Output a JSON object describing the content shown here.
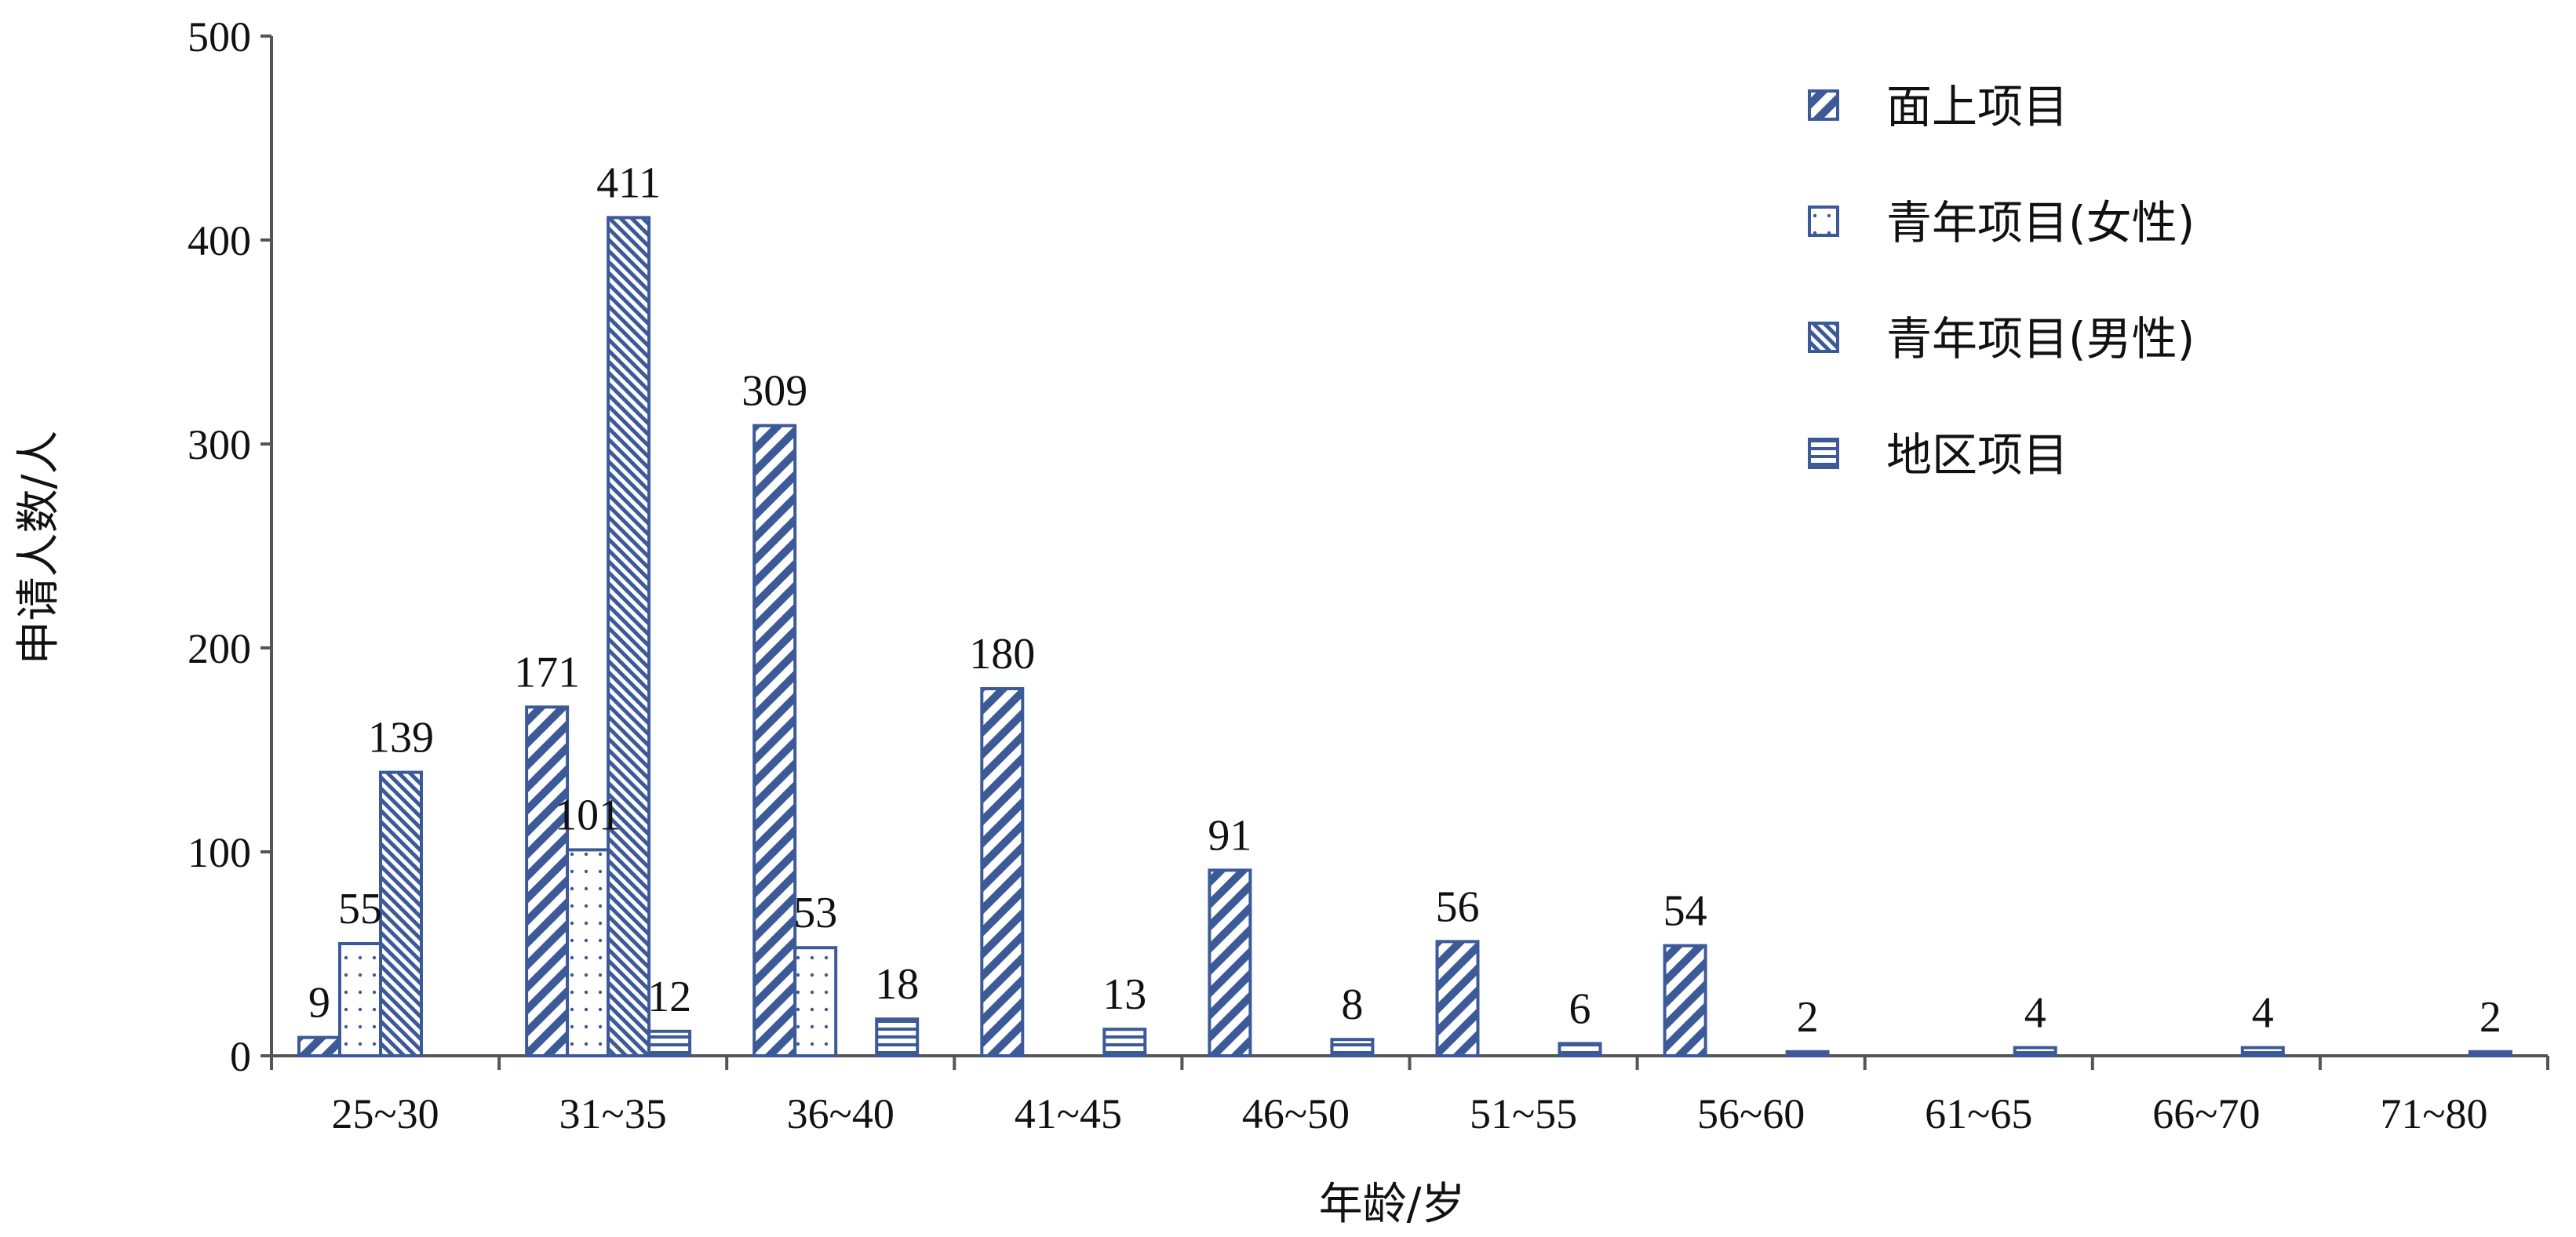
{
  "chart_data": {
    "type": "bar",
    "xlabel": "年龄/岁",
    "ylabel": "申请人数/人",
    "ylim": [
      0,
      500
    ],
    "yticks": [
      0,
      100,
      200,
      300,
      400,
      500
    ],
    "categories": [
      "25~30",
      "31~35",
      "36~40",
      "41~45",
      "46~50",
      "51~55",
      "56~60",
      "61~65",
      "66~70",
      "71~80"
    ],
    "series": [
      {
        "name": "面上项目",
        "pattern": "diag-down",
        "values": [
          9,
          171,
          309,
          180,
          91,
          56,
          54,
          null,
          null,
          null
        ]
      },
      {
        "name": "青年项目(女性)",
        "pattern": "dots",
        "values": [
          55,
          101,
          53,
          null,
          null,
          null,
          null,
          null,
          null,
          null
        ]
      },
      {
        "name": "青年项目(男性)",
        "pattern": "diag-up",
        "values": [
          139,
          411,
          null,
          null,
          null,
          null,
          null,
          null,
          null,
          null
        ]
      },
      {
        "name": "地区项目",
        "pattern": "horiz",
        "values": [
          null,
          12,
          18,
          13,
          8,
          6,
          2,
          4,
          4,
          2
        ]
      }
    ],
    "legend_position": "top-right",
    "grid": false
  },
  "colors": {
    "bar_stroke": "#3d5a98",
    "pattern": "#3d5a98",
    "axis": "#555555",
    "text": "#111111"
  }
}
